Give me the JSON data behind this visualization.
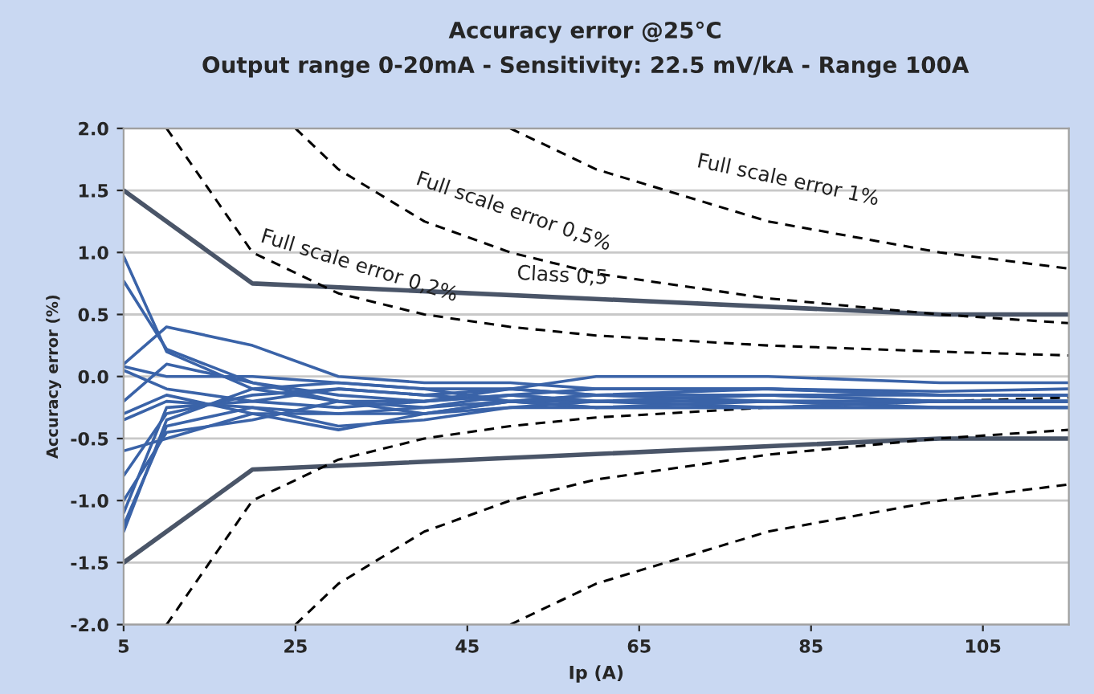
{
  "chart_data": {
    "type": "line",
    "title": "Accuracy error @25°C",
    "subtitle": "Output range 0-20mA - Sensitivity: 22.5 mV/kA - Range 100A",
    "xlabel": "Ip (A)",
    "ylabel": "Accuracy error (%)",
    "xlim": [
      5,
      115
    ],
    "xticks": [
      5,
      25,
      45,
      65,
      85,
      105
    ],
    "ylim": [
      -2,
      2
    ],
    "yticks": [
      {
        "value": -2,
        "label": "-2.0"
      },
      {
        "value": -1.5,
        "label": "-1.5"
      },
      {
        "value": -1,
        "label": "-1.0"
      },
      {
        "value": -0.5,
        "label": "-0.5"
      },
      {
        "value": 0,
        "label": "0.0"
      },
      {
        "value": 0.5,
        "label": "0.5"
      },
      {
        "value": 1,
        "label": "1.0"
      },
      {
        "value": 1.5,
        "label": "1.5"
      },
      {
        "value": 2,
        "label": "2.0"
      }
    ],
    "grid": "y",
    "annotations": [
      {
        "text": "Full scale error 0,5%",
        "x": 50,
        "y": 1.0
      },
      {
        "text": "Full scale error 0,2%",
        "x": 30,
        "y": 0.67
      },
      {
        "text": "Class 0,5",
        "x": 56,
        "y": 0.64
      },
      {
        "text": "Full scale error 1%",
        "x": 80,
        "y": 1.25
      }
    ],
    "series": [
      {
        "color": "#4a5568",
        "line_style": "solid",
        "x": [
          5,
          20,
          100,
          115
        ],
        "values": [
          1.5,
          0.75,
          0.5,
          0.5
        ]
      },
      {
        "color": "#4a5568",
        "line_style": "solid",
        "x": [
          5,
          20,
          100,
          115
        ],
        "values": [
          -1.5,
          -0.75,
          -0.5,
          -0.5
        ]
      },
      {
        "color": "#000000",
        "line_style": "dashed",
        "x": [
          10,
          20,
          30,
          40,
          50,
          60,
          80,
          100,
          115
        ],
        "values": [
          2.0,
          1.0,
          0.67,
          0.5,
          0.4,
          0.33,
          0.25,
          0.2,
          0.17
        ]
      },
      {
        "color": "#000000",
        "line_style": "dashed",
        "x": [
          10,
          20,
          30,
          40,
          50,
          60,
          80,
          100,
          115
        ],
        "values": [
          -2.0,
          -1.0,
          -0.67,
          -0.5,
          -0.4,
          -0.33,
          -0.25,
          -0.2,
          -0.17
        ]
      },
      {
        "color": "#000000",
        "line_style": "dashed",
        "x": [
          25,
          30,
          40,
          50,
          60,
          80,
          100,
          115
        ],
        "values": [
          2.0,
          1.67,
          1.25,
          1.0,
          0.83,
          0.63,
          0.5,
          0.43
        ]
      },
      {
        "color": "#000000",
        "line_style": "dashed",
        "x": [
          25,
          30,
          40,
          50,
          60,
          80,
          100,
          115
        ],
        "values": [
          -2.0,
          -1.67,
          -1.25,
          -1.0,
          -0.83,
          -0.63,
          -0.5,
          -0.43
        ]
      },
      {
        "color": "#000000",
        "line_style": "dashed",
        "x": [
          50,
          60,
          80,
          100,
          115
        ],
        "values": [
          2.0,
          1.67,
          1.25,
          1.0,
          0.87
        ]
      },
      {
        "color": "#000000",
        "line_style": "dashed",
        "x": [
          50,
          60,
          80,
          100,
          115
        ],
        "values": [
          -2.0,
          -1.67,
          -1.25,
          -1.0,
          -0.87
        ]
      },
      {
        "color": "#3a63a8",
        "line_style": "solid",
        "x": [
          5,
          10,
          20,
          30,
          40,
          50,
          60,
          80,
          100,
          115
        ],
        "values": [
          0.97,
          0.2,
          -0.1,
          -0.2,
          -0.25,
          -0.2,
          -0.15,
          -0.15,
          -0.2,
          -0.2
        ]
      },
      {
        "color": "#3a63a8",
        "line_style": "solid",
        "x": [
          5,
          10,
          20,
          30,
          40,
          50,
          60,
          80,
          100,
          115
        ],
        "values": [
          0.77,
          0.22,
          -0.05,
          -0.15,
          -0.2,
          -0.15,
          -0.1,
          -0.1,
          -0.15,
          -0.15
        ]
      },
      {
        "color": "#3a63a8",
        "line_style": "solid",
        "x": [
          5,
          10,
          20,
          30,
          40,
          50,
          60,
          80,
          100,
          115
        ],
        "values": [
          0.1,
          0.4,
          0.25,
          0.0,
          -0.05,
          -0.05,
          -0.1,
          -0.1,
          -0.12,
          -0.1
        ]
      },
      {
        "color": "#3a63a8",
        "line_style": "solid",
        "x": [
          5,
          10,
          20,
          30,
          40,
          50,
          60,
          80,
          100,
          115
        ],
        "values": [
          0.08,
          0.0,
          0.0,
          -0.05,
          -0.1,
          -0.1,
          0.0,
          0.0,
          -0.05,
          -0.05
        ]
      },
      {
        "color": "#3a63a8",
        "line_style": "solid",
        "x": [
          5,
          10,
          20,
          30,
          40,
          50,
          60,
          80,
          100,
          115
        ],
        "values": [
          -0.2,
          0.1,
          -0.05,
          -0.2,
          -0.3,
          -0.2,
          -0.15,
          -0.2,
          -0.2,
          -0.2
        ]
      },
      {
        "color": "#3a63a8",
        "line_style": "solid",
        "x": [
          5,
          10,
          20,
          30,
          40,
          50,
          60,
          80,
          100,
          115
        ],
        "values": [
          -0.3,
          -0.15,
          -0.3,
          -0.43,
          -0.3,
          -0.2,
          -0.2,
          -0.2,
          -0.25,
          -0.25
        ]
      },
      {
        "color": "#3a63a8",
        "line_style": "solid",
        "x": [
          5,
          10,
          20,
          30,
          40,
          50,
          60,
          80,
          100,
          115
        ],
        "values": [
          -0.35,
          -0.2,
          -0.25,
          -0.4,
          -0.35,
          -0.25,
          -0.25,
          -0.25,
          -0.25,
          -0.25
        ]
      },
      {
        "color": "#3a63a8",
        "line_style": "solid",
        "x": [
          5,
          10,
          20,
          30,
          40,
          50,
          60,
          80,
          100,
          115
        ],
        "values": [
          -0.6,
          -0.5,
          -0.3,
          -0.3,
          -0.25,
          -0.15,
          -0.2,
          -0.15,
          -0.2,
          -0.2
        ]
      },
      {
        "color": "#3a63a8",
        "line_style": "solid",
        "x": [
          5,
          10,
          20,
          30,
          40,
          50,
          60,
          80,
          100,
          115
        ],
        "values": [
          -0.8,
          -0.3,
          -0.15,
          -0.1,
          -0.15,
          -0.1,
          -0.15,
          -0.1,
          -0.15,
          -0.15
        ]
      },
      {
        "color": "#3a63a8",
        "line_style": "solid",
        "x": [
          5,
          10,
          20,
          30,
          40,
          50,
          60,
          80,
          100,
          115
        ],
        "values": [
          -1.0,
          -0.45,
          -0.35,
          -0.2,
          -0.2,
          -0.15,
          -0.2,
          -0.2,
          -0.2,
          -0.2
        ]
      },
      {
        "color": "#3a63a8",
        "line_style": "solid",
        "x": [
          5,
          10,
          20,
          30,
          40,
          50,
          60,
          80,
          100,
          115
        ],
        "values": [
          -1.1,
          -0.25,
          -0.2,
          -0.1,
          -0.15,
          -0.2,
          -0.25,
          -0.25,
          -0.25,
          -0.25
        ]
      },
      {
        "color": "#3a63a8",
        "line_style": "solid",
        "x": [
          5,
          10,
          20,
          30,
          40,
          50,
          60,
          80,
          100,
          115
        ],
        "values": [
          -1.2,
          -0.4,
          -0.25,
          -0.3,
          -0.3,
          -0.25,
          -0.2,
          -0.25,
          -0.2,
          -0.2
        ]
      },
      {
        "color": "#3a63a8",
        "line_style": "solid",
        "x": [
          5,
          10,
          20,
          30,
          40,
          50,
          60,
          80,
          100,
          115
        ],
        "values": [
          -1.25,
          -0.35,
          -0.1,
          -0.05,
          -0.1,
          -0.2,
          -0.25,
          -0.2,
          -0.2,
          -0.2
        ]
      },
      {
        "color": "#3a63a8",
        "line_style": "solid",
        "x": [
          5,
          10,
          20,
          30,
          40,
          50,
          60,
          80,
          100,
          115
        ],
        "values": [
          0.05,
          -0.1,
          -0.2,
          -0.25,
          -0.2,
          -0.1,
          -0.15,
          -0.15,
          -0.15,
          -0.15
        ]
      }
    ]
  }
}
